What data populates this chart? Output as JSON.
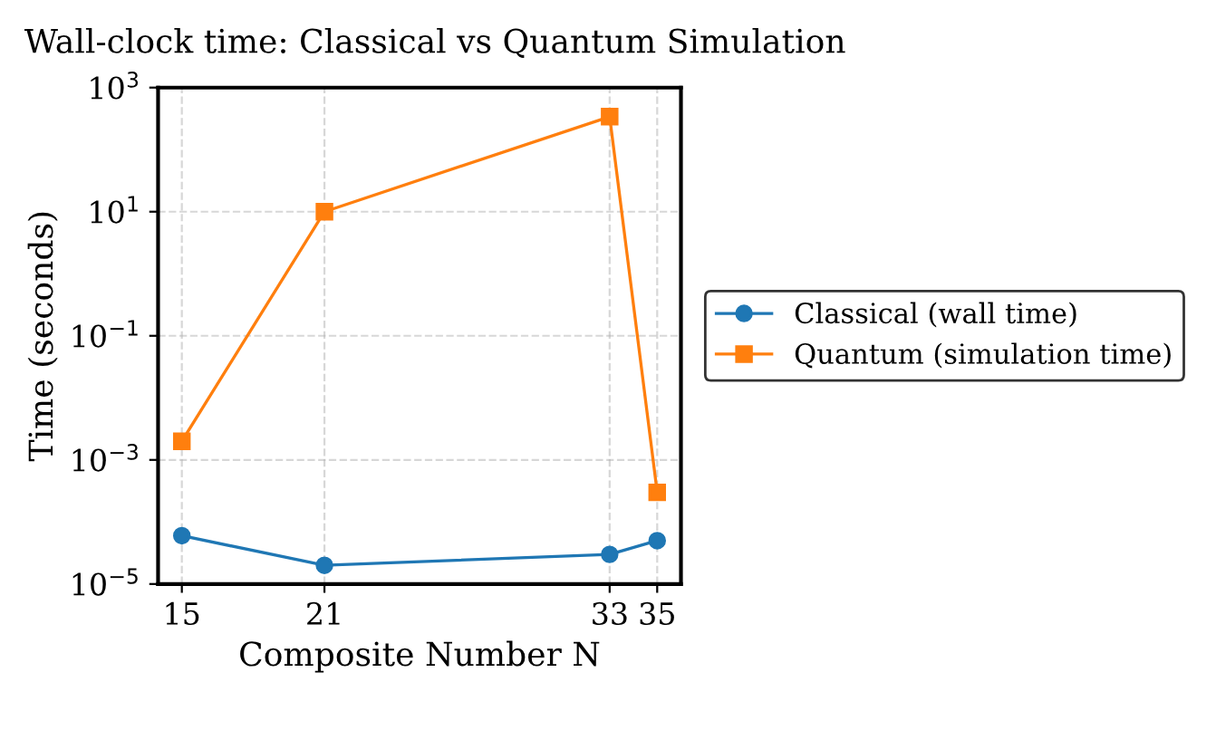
{
  "chart_data": {
    "type": "line",
    "title": "Wall-clock time: Classical vs Quantum Simulation",
    "xlabel": "Composite Number N",
    "ylabel": "Time (seconds)",
    "x": [
      15,
      21,
      33,
      35
    ],
    "series": [
      {
        "name": "Classical (wall time)",
        "color": "#1f77b4",
        "marker": "circle",
        "values": [
          6e-05,
          2e-05,
          3e-05,
          5e-05
        ]
      },
      {
        "name": "Quantum (simulation time)",
        "color": "#ff7f0e",
        "marker": "square",
        "values": [
          0.002,
          10,
          340,
          0.0003
        ]
      }
    ],
    "log": "y",
    "xlim": [
      14,
      36
    ],
    "xticks": [
      15,
      21,
      33,
      35
    ],
    "ylim": [
      1e-05,
      1000
    ],
    "yticks": [
      {
        "value": 1e-05,
        "label": "10$^{−5}$"
      },
      {
        "value": 0.001,
        "label": "10$^{−3}$"
      },
      {
        "value": 0.1,
        "label": "10$^{−1}$"
      },
      {
        "value": 10,
        "label": "10$^{1}$"
      },
      {
        "value": 1000,
        "label": "10$^{3}$"
      }
    ],
    "grid": true,
    "legend": "right"
  }
}
